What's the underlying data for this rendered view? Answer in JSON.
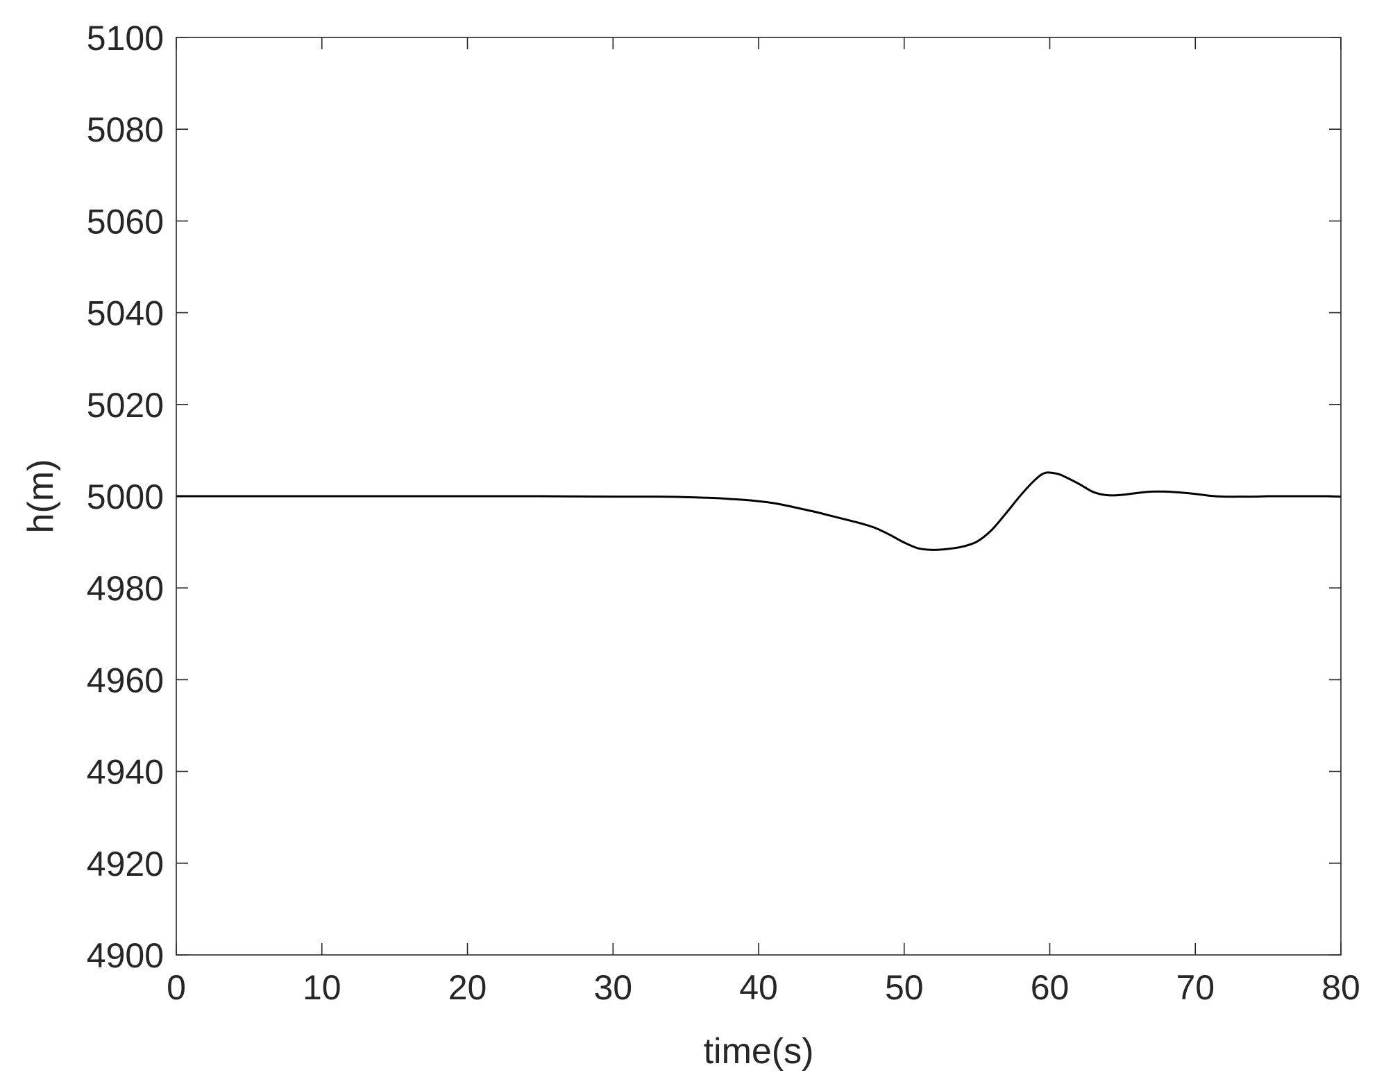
{
  "chart_data": {
    "type": "line",
    "title": "",
    "xlabel": "time(s)",
    "ylabel": "h(m)",
    "xlim": [
      0,
      80
    ],
    "ylim": [
      4900,
      5100
    ],
    "xticks": [
      0,
      10,
      20,
      30,
      40,
      50,
      60,
      70,
      80
    ],
    "yticks": [
      4900,
      4920,
      4940,
      4960,
      4980,
      5000,
      5020,
      5040,
      5060,
      5080,
      5100
    ],
    "xtick_labels": [
      "0",
      "10",
      "20",
      "30",
      "40",
      "50",
      "60",
      "70",
      "80"
    ],
    "ytick_labels": [
      "4900",
      "4920",
      "4940",
      "4960",
      "4980",
      "5000",
      "5020",
      "5040",
      "5060",
      "5080",
      "5100"
    ],
    "grid": false,
    "box": true,
    "colors": {
      "line": "#000000",
      "axes": "#262626",
      "background": "#ffffff"
    },
    "series": [
      {
        "x": [
          0,
          5,
          10,
          15,
          20,
          25,
          30,
          33,
          35,
          37,
          38,
          39,
          40,
          41,
          42,
          43,
          44,
          45,
          46,
          47,
          48,
          49,
          50,
          51,
          52,
          53,
          54,
          55,
          56,
          57,
          58,
          59,
          59.7,
          60.5,
          61,
          62,
          63,
          64,
          65,
          66,
          67,
          68,
          69,
          70,
          71,
          72,
          73,
          74,
          75,
          76,
          77,
          78,
          79,
          80
        ],
        "values": [
          5000,
          5000,
          5000,
          5000,
          5000,
          5000,
          4999.9,
          4999.9,
          4999.8,
          4999.6,
          4999.4,
          4999.2,
          4998.9,
          4998.5,
          4997.9,
          4997.2,
          4996.5,
          4995.7,
          4994.9,
          4994.1,
          4993.1,
          4991.6,
          4989.9,
          4988.6,
          4988.3,
          4988.5,
          4989.0,
          4990.1,
          4992.6,
          4996.3,
          5000.2,
          5003.6,
          5005.1,
          5004.9,
          5004.3,
          5002.7,
          5000.9,
          5000.2,
          5000.3,
          5000.7,
          5001.0,
          5001.0,
          5000.8,
          5000.5,
          5000.1,
          4999.9,
          4999.9,
          4999.9,
          5000.0,
          5000.0,
          5000.0,
          5000.0,
          5000.0,
          4999.9
        ]
      }
    ]
  }
}
